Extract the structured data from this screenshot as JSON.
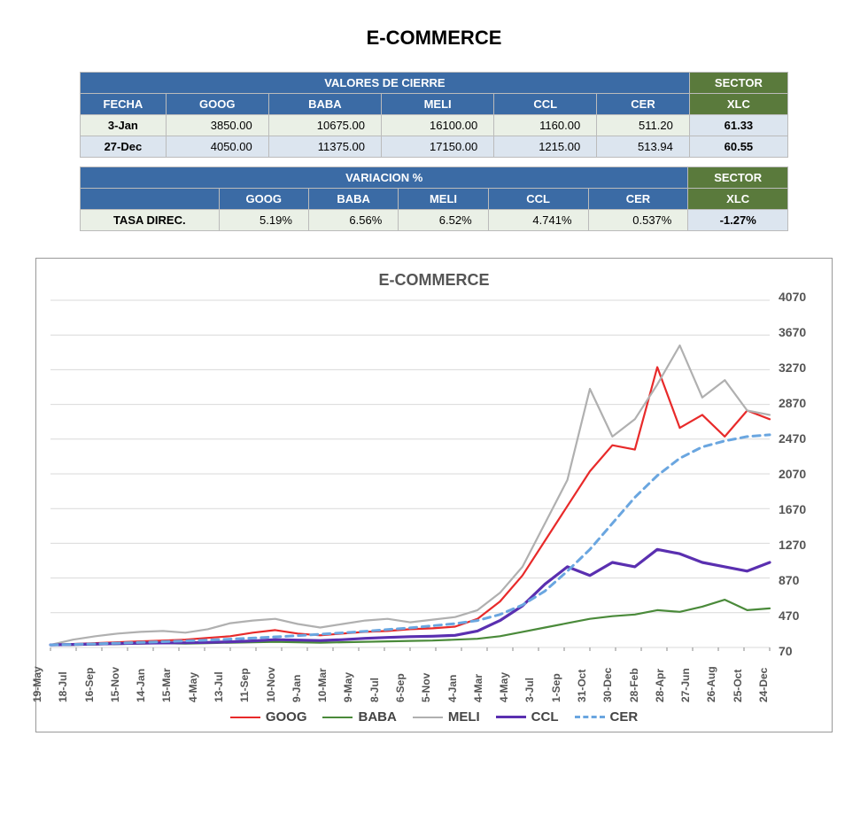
{
  "page_title": "E-COMMERCE",
  "table_cierre": {
    "header_main": "VALORES DE CIERRE",
    "header_sector": "SECTOR",
    "columns": [
      "FECHA",
      "GOOG",
      "BABA",
      "MELI",
      "CCL",
      "CER"
    ],
    "sector_col": "XLC",
    "rows": [
      {
        "fecha": "3-Jan",
        "goog": "3850.00",
        "baba": "10675.00",
        "meli": "16100.00",
        "ccl": "1160.00",
        "cer": "511.20",
        "xlc": "61.33"
      },
      {
        "fecha": "27-Dec",
        "goog": "4050.00",
        "baba": "11375.00",
        "meli": "17150.00",
        "ccl": "1215.00",
        "cer": "513.94",
        "xlc": "60.55"
      }
    ]
  },
  "table_var": {
    "header_main": "VARIACION %",
    "header_sector": "SECTOR",
    "columns": [
      "",
      "GOOG",
      "BABA",
      "MELI",
      "CCL",
      "CER"
    ],
    "sector_col": "XLC",
    "rows": [
      {
        "label": "TASA DIREC.",
        "goog": "5.19%",
        "baba": "6.56%",
        "meli": "6.52%",
        "ccl": "4.741%",
        "cer": "0.537%",
        "xlc": "-1.27%"
      }
    ]
  },
  "chart": {
    "title": "E-COMMERCE",
    "background_color": "#ffffff",
    "grid_color": "#d9d9d9",
    "ylim": [
      70,
      4070
    ],
    "ytick_step": 400,
    "yticks": [
      70,
      470,
      870,
      1270,
      1670,
      2070,
      2470,
      2870,
      3270,
      3670,
      4070
    ],
    "xticks": [
      "19-May",
      "18-Jul",
      "16-Sep",
      "15-Nov",
      "14-Jan",
      "15-Mar",
      "4-May",
      "13-Jul",
      "11-Sep",
      "10-Nov",
      "9-Jan",
      "10-Mar",
      "9-May",
      "8-Jul",
      "6-Sep",
      "5-Nov",
      "4-Jan",
      "4-Mar",
      "4-May",
      "3-Jul",
      "1-Sep",
      "31-Oct",
      "30-Dec",
      "28-Feb",
      "28-Apr",
      "27-Jun",
      "26-Aug",
      "25-Oct",
      "24-Dec"
    ],
    "series": [
      {
        "name": "GOOG",
        "color": "#e82a2a",
        "width": 2.2,
        "dash": "none",
        "y": [
          100,
          110,
          120,
          130,
          140,
          150,
          160,
          180,
          200,
          240,
          270,
          230,
          210,
          230,
          250,
          260,
          280,
          290,
          310,
          400,
          600,
          900,
          1300,
          1700,
          2100,
          2400,
          2350,
          3300,
          2600,
          2750,
          2500,
          2800,
          2700
        ]
      },
      {
        "name": "BABA",
        "color": "#4a8a3a",
        "width": 2.2,
        "dash": "none",
        "y": [
          100,
          100,
          105,
          110,
          115,
          120,
          115,
          120,
          125,
          130,
          135,
          130,
          125,
          130,
          135,
          140,
          145,
          150,
          160,
          170,
          200,
          250,
          300,
          350,
          400,
          430,
          450,
          500,
          480,
          540,
          620,
          500,
          520
        ]
      },
      {
        "name": "MELI",
        "color": "#b0b0b0",
        "width": 2.2,
        "dash": "none",
        "y": [
          100,
          160,
          200,
          230,
          250,
          260,
          240,
          280,
          350,
          380,
          400,
          340,
          300,
          340,
          380,
          400,
          360,
          390,
          420,
          500,
          700,
          1000,
          1500,
          2000,
          3050,
          2500,
          2700,
          3100,
          3550,
          2950,
          3150,
          2800,
          2750
        ]
      },
      {
        "name": "CCL",
        "color": "#5a2fb0",
        "width": 3.2,
        "dash": "none",
        "y": [
          100,
          105,
          110,
          115,
          120,
          122,
          124,
          128,
          135,
          145,
          160,
          155,
          150,
          160,
          175,
          185,
          195,
          200,
          210,
          260,
          380,
          550,
          800,
          1000,
          900,
          1050,
          1000,
          1200,
          1150,
          1050,
          1000,
          950,
          1050
        ]
      },
      {
        "name": "CER",
        "color": "#6aa6e0",
        "width": 3.0,
        "dash": "8,6",
        "y": [
          100,
          105,
          112,
          120,
          128,
          136,
          145,
          155,
          166,
          178,
          192,
          206,
          222,
          238,
          256,
          276,
          296,
          320,
          344,
          380,
          450,
          560,
          720,
          950,
          1200,
          1500,
          1800,
          2050,
          2250,
          2380,
          2450,
          2500,
          2520
        ]
      }
    ]
  }
}
